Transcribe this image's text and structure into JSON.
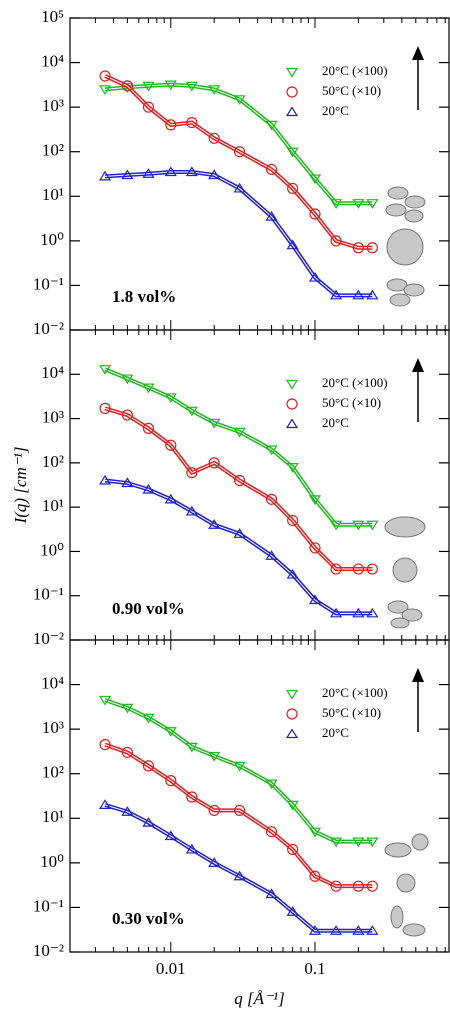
{
  "chart_data": [
    {
      "type": "line",
      "annotation": "1.8 vol%",
      "xscale": "log",
      "yscale": "log",
      "xlim": [
        0.002,
        0.85
      ],
      "ylim": [
        0.01,
        100000
      ],
      "xticks": [],
      "yticks": [
        {
          "value": 0.01,
          "label": "10⁻²"
        },
        {
          "value": 0.1,
          "label": "10⁻¹"
        },
        {
          "value": 1,
          "label": "10⁰"
        },
        {
          "value": 10,
          "label": "10¹"
        },
        {
          "value": 100,
          "label": "10²"
        },
        {
          "value": 1000,
          "label": "10³"
        },
        {
          "value": 10000,
          "label": "10⁴"
        },
        {
          "value": 100000,
          "label": "10⁵"
        }
      ],
      "x": [
        0.0035,
        0.005,
        0.007,
        0.01,
        0.014,
        0.02,
        0.03,
        0.05,
        0.07,
        0.1,
        0.14,
        0.2,
        0.25
      ],
      "series": [
        {
          "name": "20°C (×100)",
          "color": "#1fba1f",
          "marker": "down",
          "values": [
            2500,
            2800,
            3000,
            3200,
            3000,
            2500,
            1500,
            400,
            100,
            25,
            7,
            7,
            7
          ]
        },
        {
          "name": "50°C (×10)",
          "color": "#e21f1f",
          "marker": "circle",
          "values": [
            5000,
            3000,
            1000,
            400,
            450,
            200,
            100,
            40,
            15,
            4,
            1,
            0.7,
            0.7
          ]
        },
        {
          "name": "20°C",
          "color": "#2020d0",
          "marker": "up",
          "values": [
            28,
            30,
            32,
            35,
            35,
            30,
            15,
            3.5,
            0.8,
            0.15,
            0.06,
            0.06,
            0.06
          ]
        }
      ]
    },
    {
      "type": "line",
      "annotation": "0.90 vol%",
      "ylabel": "I(q) [cm⁻¹]",
      "xscale": "log",
      "yscale": "log",
      "xlim": [
        0.002,
        0.85
      ],
      "ylim": [
        0.01,
        100000
      ],
      "xticks": [],
      "yticks": [
        {
          "value": 0.01,
          "label": "10⁻²"
        },
        {
          "value": 0.1,
          "label": "10⁻¹"
        },
        {
          "value": 1,
          "label": "10⁰"
        },
        {
          "value": 10,
          "label": "10¹"
        },
        {
          "value": 100,
          "label": "10²"
        },
        {
          "value": 1000,
          "label": "10³"
        },
        {
          "value": 10000,
          "label": "10⁴"
        }
      ],
      "x": [
        0.0035,
        0.005,
        0.007,
        0.01,
        0.014,
        0.02,
        0.03,
        0.05,
        0.07,
        0.1,
        0.14,
        0.2,
        0.25
      ],
      "series": [
        {
          "name": "20°C (×100)",
          "color": "#1fba1f",
          "marker": "down",
          "values": [
            13000,
            8000,
            5000,
            3000,
            1500,
            800,
            500,
            200,
            80,
            15,
            4,
            4,
            4
          ]
        },
        {
          "name": "50°C (×10)",
          "color": "#e21f1f",
          "marker": "circle",
          "values": [
            1700,
            1200,
            600,
            250,
            60,
            100,
            40,
            15,
            5,
            1.2,
            0.4,
            0.4,
            0.4
          ]
        },
        {
          "name": "20°C",
          "color": "#2020d0",
          "marker": "up",
          "values": [
            40,
            35,
            25,
            15,
            8,
            4,
            2.5,
            0.8,
            0.3,
            0.08,
            0.04,
            0.04,
            0.04
          ]
        }
      ]
    },
    {
      "type": "line",
      "annotation": "0.30 vol%",
      "xlabel": "q [Å⁻¹]",
      "xscale": "log",
      "yscale": "log",
      "xlim": [
        0.002,
        0.85
      ],
      "ylim": [
        0.01,
        100000
      ],
      "xticks": [
        0.01,
        0.1
      ],
      "yticks": [
        {
          "value": 0.01,
          "label": "10⁻²"
        },
        {
          "value": 0.1,
          "label": "10⁻¹"
        },
        {
          "value": 1,
          "label": "10⁰"
        },
        {
          "value": 10,
          "label": "10¹"
        },
        {
          "value": 100,
          "label": "10²"
        },
        {
          "value": 1000,
          "label": "10³"
        },
        {
          "value": 10000,
          "label": "10⁴"
        }
      ],
      "x": [
        0.0035,
        0.005,
        0.007,
        0.01,
        0.014,
        0.02,
        0.03,
        0.05,
        0.07,
        0.1,
        0.14,
        0.2,
        0.25
      ],
      "series": [
        {
          "name": "20°C (×100)",
          "color": "#1fba1f",
          "marker": "down",
          "values": [
            4500,
            3000,
            1800,
            900,
            400,
            250,
            150,
            60,
            20,
            5,
            3,
            3,
            3
          ]
        },
        {
          "name": "50°C (×10)",
          "color": "#e21f1f",
          "marker": "circle",
          "values": [
            450,
            300,
            150,
            70,
            30,
            15,
            15,
            5,
            2,
            0.5,
            0.3,
            0.3,
            0.3
          ]
        },
        {
          "name": "20°C",
          "color": "#2020d0",
          "marker": "up",
          "values": [
            20,
            14,
            8,
            4,
            2,
            1,
            0.5,
            0.2,
            0.08,
            0.03,
            0.03,
            0.03,
            0.03
          ]
        }
      ]
    }
  ]
}
